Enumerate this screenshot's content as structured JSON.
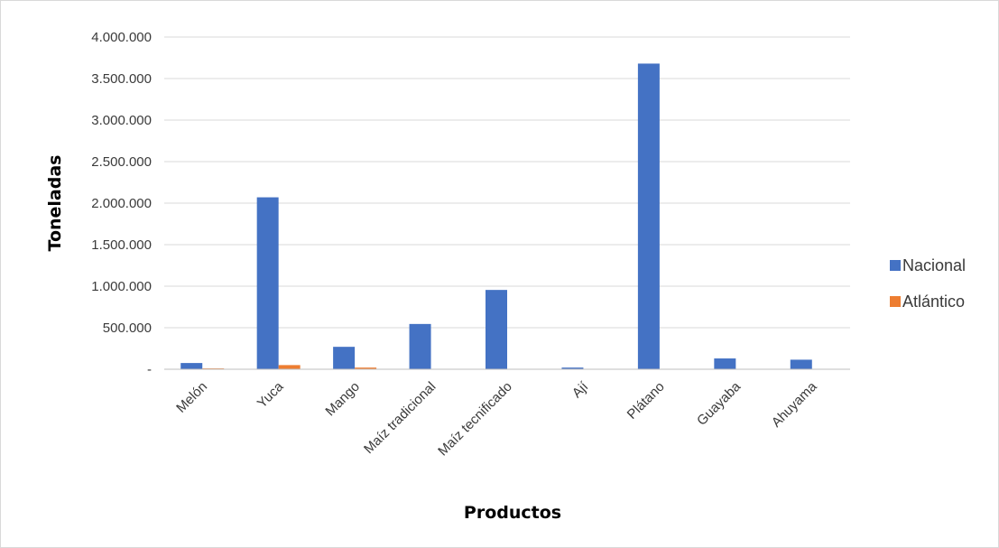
{
  "chart_data": {
    "type": "bar",
    "title": "",
    "xlabel": "Productos",
    "ylabel": "Toneladas",
    "categories": [
      "Melón",
      "Yuca",
      "Mango",
      "Maíz tradicional",
      "Maíz tecnificado",
      "Ají",
      "Plátano",
      "Guayaba",
      "Ahuyama"
    ],
    "series": [
      {
        "name": "Nacional",
        "color": "#4472C4",
        "values": [
          75000,
          2070000,
          270000,
          545000,
          955000,
          20000,
          3680000,
          130000,
          115000
        ]
      },
      {
        "name": "Atlántico",
        "color": "#ED7D31",
        "values": [
          10000,
          50000,
          20000,
          2000,
          1000,
          500,
          1500,
          3000,
          1000
        ]
      }
    ],
    "ylim": [
      0,
      4000000
    ],
    "yticks": [
      0,
      500000,
      1000000,
      1500000,
      2000000,
      2500000,
      3000000,
      3500000,
      4000000
    ],
    "ytick_labels": [
      "-",
      "500.000",
      "1.000.000",
      "1.500.000",
      "2.000.000",
      "2.500.000",
      "3.000.000",
      "3.500.000",
      "4.000.000"
    ],
    "grid": true,
    "legend_position": "right"
  }
}
